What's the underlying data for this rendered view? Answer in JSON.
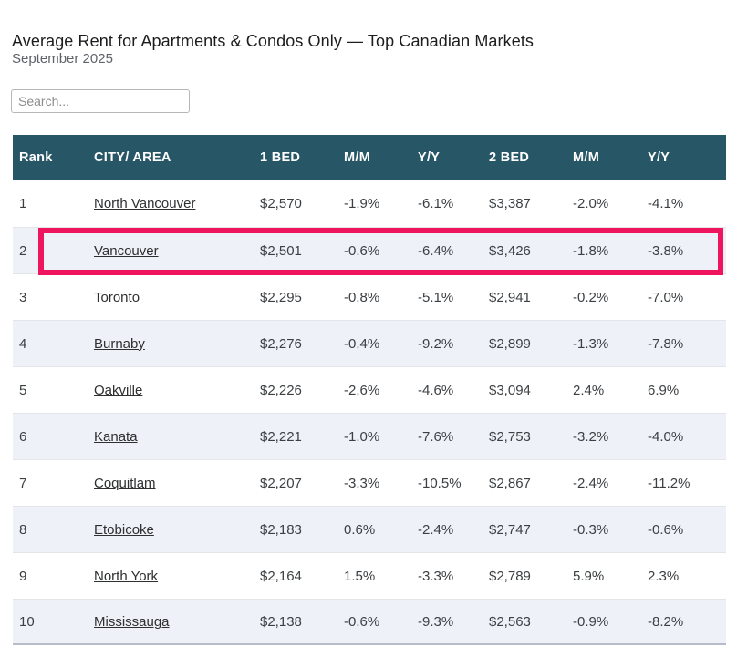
{
  "page": {
    "title": "Average Rent for Apartments & Condos Only — Top Canadian Markets",
    "subtitle": "September 2025"
  },
  "search": {
    "placeholder": "Search..."
  },
  "table": {
    "columns": [
      "Rank",
      "CITY/ AREA",
      "1 BED",
      "M/M",
      "Y/Y",
      "2 BED",
      "M/M",
      "Y/Y"
    ],
    "rows": [
      {
        "rank": "1",
        "city": "North Vancouver",
        "bed1": "$2,570",
        "mm1": "-1.9%",
        "yy1": "-6.1%",
        "bed2": "$3,387",
        "mm2": "-2.0%",
        "yy2": "-4.1%"
      },
      {
        "rank": "2",
        "city": "Vancouver",
        "bed1": "$2,501",
        "mm1": "-0.6%",
        "yy1": "-6.4%",
        "bed2": "$3,426",
        "mm2": "-1.8%",
        "yy2": "-3.8%"
      },
      {
        "rank": "3",
        "city": "Toronto",
        "bed1": "$2,295",
        "mm1": "-0.8%",
        "yy1": "-5.1%",
        "bed2": "$2,941",
        "mm2": "-0.2%",
        "yy2": "-7.0%"
      },
      {
        "rank": "4",
        "city": "Burnaby",
        "bed1": "$2,276",
        "mm1": "-0.4%",
        "yy1": "-9.2%",
        "bed2": "$2,899",
        "mm2": "-1.3%",
        "yy2": "-7.8%"
      },
      {
        "rank": "5",
        "city": "Oakville",
        "bed1": "$2,226",
        "mm1": "-2.6%",
        "yy1": "-4.6%",
        "bed2": "$3,094",
        "mm2": "2.4%",
        "yy2": "6.9%"
      },
      {
        "rank": "6",
        "city": "Kanata",
        "bed1": "$2,221",
        "mm1": "-1.0%",
        "yy1": "-7.6%",
        "bed2": "$2,753",
        "mm2": "-3.2%",
        "yy2": "-4.0%"
      },
      {
        "rank": "7",
        "city": "Coquitlam",
        "bed1": "$2,207",
        "mm1": "-3.3%",
        "yy1": "-10.5%",
        "bed2": "$2,867",
        "mm2": "-2.4%",
        "yy2": "-11.2%"
      },
      {
        "rank": "8",
        "city": "Etobicoke",
        "bed1": "$2,183",
        "mm1": "0.6%",
        "yy1": "-2.4%",
        "bed2": "$2,747",
        "mm2": "-0.3%",
        "yy2": "-0.6%"
      },
      {
        "rank": "9",
        "city": "North York",
        "bed1": "$2,164",
        "mm1": "1.5%",
        "yy1": "-3.3%",
        "bed2": "$2,789",
        "mm2": "5.9%",
        "yy2": "2.3%"
      },
      {
        "rank": "10",
        "city": "Mississauga",
        "bed1": "$2,138",
        "mm1": "-0.6%",
        "yy1": "-9.3%",
        "bed2": "$2,563",
        "mm2": "-0.9%",
        "yy2": "-8.2%"
      }
    ],
    "highlighted_rank": "2"
  },
  "colors": {
    "header_bg": "#275767",
    "highlight_border": "#EE145E",
    "stripe_bg": "#EEF1F7",
    "header_text": "#FFFFFF",
    "body_text": "#3C4043"
  }
}
